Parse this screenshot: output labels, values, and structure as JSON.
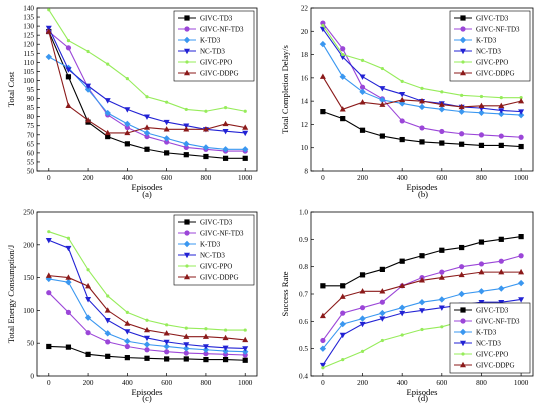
{
  "legend_labels": [
    "GIVC-TD3",
    "GIVC-NF-TD3",
    "K-TD3",
    "NC-TD3",
    "GIVC-PPO",
    "GIVC-DDPG"
  ],
  "styles": [
    {
      "color": "#000000",
      "marker": "square"
    },
    {
      "color": "#9b46d8",
      "marker": "circle"
    },
    {
      "color": "#3a97f0",
      "marker": "diamond"
    },
    {
      "color": "#2222d4",
      "marker": "tri-down"
    },
    {
      "color": "#96ec5a",
      "marker": "dot"
    },
    {
      "color": "#8b1a1a",
      "marker": "tri-up"
    }
  ],
  "chart_data": [
    {
      "type": "line",
      "panel_label": "(a)",
      "xlabel": "Episodes",
      "ylabel": "Total Cost",
      "x": [
        0,
        100,
        200,
        300,
        400,
        500,
        600,
        700,
        800,
        900,
        1000
      ],
      "xticks": [
        0,
        200,
        400,
        600,
        800,
        1000
      ],
      "xlim": [
        -60,
        1060
      ],
      "ylim": [
        50,
        140
      ],
      "yticks": [
        50,
        55,
        60,
        65,
        70,
        75,
        80,
        85,
        90,
        95,
        100,
        105,
        110,
        115,
        120,
        125,
        130,
        135,
        140
      ],
      "legend_position": "top-right",
      "series": [
        {
          "name": "GIVC-TD3",
          "values": [
            127,
            102,
            77,
            69,
            65,
            62,
            60,
            59,
            58,
            57,
            57
          ]
        },
        {
          "name": "GIVC-NF-TD3",
          "values": [
            127,
            118,
            96,
            81,
            74,
            69,
            66,
            63,
            62,
            61,
            61
          ]
        },
        {
          "name": "K-TD3",
          "values": [
            113,
            107,
            95,
            82,
            76,
            71,
            68,
            65,
            63,
            62,
            62
          ]
        },
        {
          "name": "NC-TD3",
          "values": [
            129,
            106,
            97,
            89,
            84,
            80,
            77,
            75,
            73,
            72,
            71
          ]
        },
        {
          "name": "GIVC-PPO",
          "values": [
            139,
            122,
            116,
            109,
            101,
            91,
            88,
            84,
            83,
            85,
            83
          ]
        },
        {
          "name": "GIVC-DDPG",
          "values": [
            127,
            86,
            78,
            71,
            71,
            74,
            73,
            73,
            73,
            76,
            74
          ]
        }
      ]
    },
    {
      "type": "line",
      "panel_label": "(b)",
      "xlabel": "Episodes",
      "ylabel": "Total Completion Delay/s",
      "x": [
        0,
        100,
        200,
        300,
        400,
        500,
        600,
        700,
        800,
        900,
        1000
      ],
      "xticks": [
        0,
        200,
        400,
        600,
        800,
        1000
      ],
      "xlim": [
        -60,
        1060
      ],
      "ylim": [
        8,
        22
      ],
      "yticks": [
        8,
        10,
        12,
        14,
        16,
        18,
        20,
        22
      ],
      "legend_position": "top-right",
      "series": [
        {
          "name": "GIVC-TD3",
          "values": [
            13.1,
            12.5,
            11.5,
            11.0,
            10.7,
            10.5,
            10.4,
            10.3,
            10.2,
            10.2,
            10.1
          ]
        },
        {
          "name": "GIVC-NF-TD3",
          "values": [
            20.7,
            18.5,
            15.2,
            14.2,
            12.3,
            11.7,
            11.4,
            11.2,
            11.1,
            11.0,
            10.9
          ]
        },
        {
          "name": "K-TD3",
          "values": [
            18.9,
            16.1,
            14.8,
            14.1,
            13.8,
            13.5,
            13.3,
            13.1,
            13.0,
            12.9,
            12.8
          ]
        },
        {
          "name": "NC-TD3",
          "values": [
            20.2,
            17.8,
            16.1,
            15.1,
            14.6,
            14.0,
            13.8,
            13.5,
            13.4,
            13.2,
            13.1
          ]
        },
        {
          "name": "GIVC-PPO",
          "values": [
            20.5,
            18.0,
            17.5,
            16.8,
            15.7,
            15.1,
            14.8,
            14.5,
            14.4,
            14.3,
            14.3
          ]
        },
        {
          "name": "GIVC-DDPG",
          "values": [
            16.1,
            13.3,
            13.9,
            13.7,
            14.1,
            14.0,
            13.7,
            13.5,
            13.6,
            13.6,
            14.0
          ]
        }
      ]
    },
    {
      "type": "line",
      "panel_label": "(c)",
      "xlabel": "Episodes",
      "ylabel": "Total Energy Consumption/J",
      "x": [
        0,
        100,
        200,
        300,
        400,
        500,
        600,
        700,
        800,
        900,
        1000
      ],
      "xticks": [
        0,
        200,
        400,
        600,
        800,
        1000
      ],
      "xlim": [
        -60,
        1060
      ],
      "ylim": [
        0,
        250
      ],
      "yticks": [
        0,
        50,
        100,
        150,
        200,
        250
      ],
      "legend_position": "top-right",
      "series": [
        {
          "name": "GIVC-TD3",
          "values": [
            45,
            44,
            33,
            30,
            28,
            27,
            26,
            26,
            25,
            25,
            24
          ]
        },
        {
          "name": "GIVC-NF-TD3",
          "values": [
            127,
            97,
            66,
            52,
            45,
            40,
            37,
            35,
            34,
            33,
            32
          ]
        },
        {
          "name": "K-TD3",
          "values": [
            148,
            143,
            89,
            65,
            53,
            48,
            45,
            42,
            40,
            38,
            37
          ]
        },
        {
          "name": "NC-TD3",
          "values": [
            207,
            195,
            117,
            85,
            68,
            58,
            52,
            48,
            45,
            43,
            42
          ]
        },
        {
          "name": "GIVC-PPO",
          "values": [
            220,
            210,
            162,
            122,
            97,
            85,
            78,
            73,
            72,
            70,
            70
          ]
        },
        {
          "name": "GIVC-DDPG",
          "values": [
            153,
            150,
            137,
            100,
            80,
            70,
            65,
            60,
            60,
            58,
            55
          ]
        }
      ]
    },
    {
      "type": "line",
      "panel_label": "(d)",
      "xlabel": "Episodes",
      "ylabel": "Success Rate",
      "x": [
        0,
        100,
        200,
        300,
        400,
        500,
        600,
        700,
        800,
        900,
        1000
      ],
      "xticks": [
        0,
        200,
        400,
        600,
        800,
        1000
      ],
      "xlim": [
        -60,
        1060
      ],
      "ylim": [
        0.4,
        1.0
      ],
      "yticks": [
        0.4,
        0.5,
        0.6,
        0.7,
        0.8,
        0.9,
        1.0
      ],
      "ytick_labels": [
        "0.4",
        "0.5",
        "0.6",
        "0.7",
        "0.8",
        "0.9",
        "1.0"
      ],
      "legend_position": "bottom-right",
      "series": [
        {
          "name": "GIVC-TD3",
          "values": [
            0.73,
            0.73,
            0.77,
            0.79,
            0.82,
            0.84,
            0.86,
            0.87,
            0.89,
            0.9,
            0.91
          ]
        },
        {
          "name": "GIVC-NF-TD3",
          "values": [
            0.53,
            0.63,
            0.65,
            0.67,
            0.73,
            0.76,
            0.78,
            0.8,
            0.81,
            0.82,
            0.84
          ]
        },
        {
          "name": "K-TD3",
          "values": [
            0.5,
            0.59,
            0.61,
            0.63,
            0.65,
            0.67,
            0.68,
            0.7,
            0.71,
            0.72,
            0.74
          ]
        },
        {
          "name": "NC-TD3",
          "values": [
            0.44,
            0.55,
            0.59,
            0.61,
            0.63,
            0.64,
            0.65,
            0.66,
            0.67,
            0.67,
            0.68
          ]
        },
        {
          "name": "GIVC-PPO",
          "values": [
            0.43,
            0.46,
            0.49,
            0.53,
            0.55,
            0.57,
            0.58,
            0.6,
            0.6,
            0.61,
            0.61
          ]
        },
        {
          "name": "GIVC-DDPG",
          "values": [
            0.62,
            0.69,
            0.71,
            0.71,
            0.73,
            0.75,
            0.76,
            0.77,
            0.78,
            0.78,
            0.78
          ]
        }
      ]
    }
  ]
}
